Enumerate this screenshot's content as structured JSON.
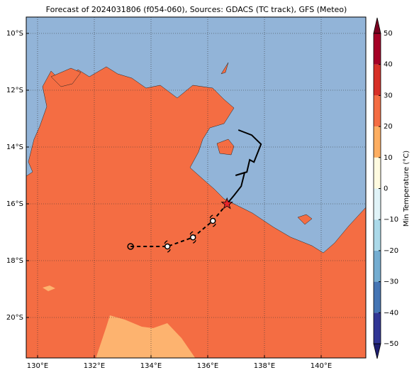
{
  "chart_data": {
    "type": "map",
    "title": "Forecast of 2024031806 (f054-060), Sources: GDACS (TC track), GFS (Meteo)",
    "xlim": [
      129.6,
      141.575
    ],
    "ylim": [
      -21.425,
      -9.425
    ],
    "xticks": [
      {
        "value": 130,
        "label": "130°E"
      },
      {
        "value": 132,
        "label": "132°E"
      },
      {
        "value": 134,
        "label": "134°E"
      },
      {
        "value": 136,
        "label": "136°E"
      },
      {
        "value": 138,
        "label": "138°E"
      },
      {
        "value": 140,
        "label": "140°E"
      }
    ],
    "yticks": [
      {
        "value": -10,
        "label": "10°S"
      },
      {
        "value": -12,
        "label": "12°S"
      },
      {
        "value": -14,
        "label": "14°S"
      },
      {
        "value": -16,
        "label": "16°S"
      },
      {
        "value": -18,
        "label": "18°S"
      },
      {
        "value": -20,
        "label": "20°S"
      }
    ],
    "grid": true,
    "track": {
      "past": {
        "lon": [
          133.28,
          134.58,
          135.48,
          136.18,
          136.68
        ],
        "lat": [
          -17.5,
          -17.5,
          -17.18,
          -16.6,
          -16.0
        ],
        "color": "#000000"
      },
      "forecast": {
        "lon": [
          136.68,
          136.93,
          137.18,
          137.3,
          136.98,
          137.38,
          137.48,
          137.63,
          137.88,
          137.55,
          137.08
        ],
        "lat": [
          -16.0,
          -15.7,
          -15.38,
          -14.9,
          -15.0,
          -14.88,
          -14.45,
          -14.53,
          -13.9,
          -13.58,
          -13.4
        ],
        "color": "#000000"
      },
      "current": {
        "lon": 136.68,
        "lat": -16.0,
        "color": "#e8262a"
      }
    },
    "colorbar": {
      "label": "Min Temperature (°C)",
      "lim": [
        -50,
        50
      ],
      "ticks": [
        {
          "value": -50,
          "label": "−50"
        },
        {
          "value": -40,
          "label": "−40"
        },
        {
          "value": -30,
          "label": "−30"
        },
        {
          "value": -20,
          "label": "−20"
        },
        {
          "value": -10,
          "label": "−10"
        },
        0,
        10,
        20,
        30,
        40,
        50
      ],
      "colors": [
        "#313695",
        "#4575b4",
        "#74add1",
        "#abd9e9",
        "#e0f3f8",
        "#fffbe0",
        "#fdae61",
        "#f46d43",
        "#d73027",
        "#a50026"
      ],
      "extend_colors": [
        "#1f1f70",
        "#7a0020"
      ]
    }
  }
}
